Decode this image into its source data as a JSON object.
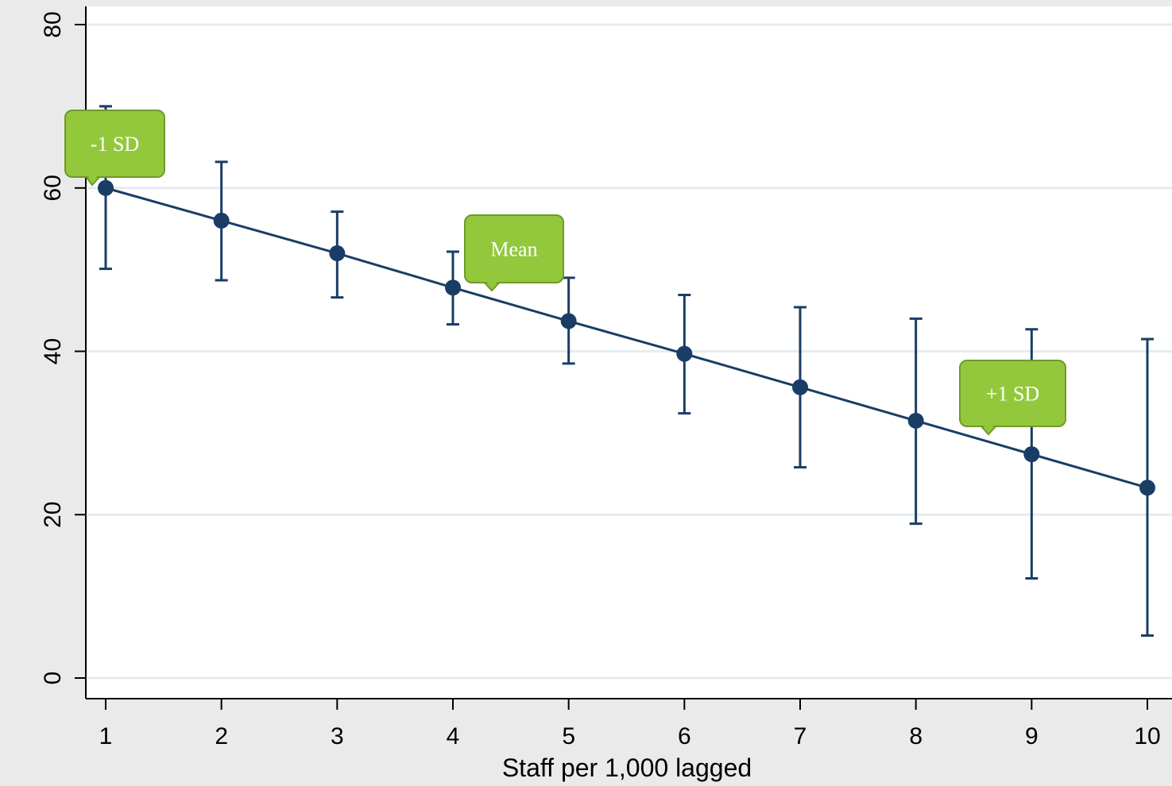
{
  "chart_data": {
    "type": "line",
    "title": "",
    "xlabel": "Staff per 1,000 lagged",
    "ylabel": "",
    "x": [
      1,
      2,
      3,
      4,
      5,
      6,
      7,
      8,
      9,
      10
    ],
    "series": [
      {
        "values": [
          60,
          56,
          52,
          47.8,
          43.7,
          39.7,
          35.6,
          31.5,
          27.4,
          23.3
        ],
        "ci_lower": [
          50.1,
          48.7,
          46.6,
          43.3,
          38.5,
          32.4,
          25.8,
          18.9,
          12.2,
          5.2
        ],
        "ci_upper": [
          70,
          63.2,
          57.1,
          52.2,
          49,
          46.9,
          45.4,
          44,
          42.7,
          41.5
        ]
      }
    ],
    "xticks": [
      "1",
      "2",
      "3",
      "4",
      "5",
      "6",
      "7",
      "8",
      "9",
      "10"
    ],
    "yticks": [
      "0",
      "20",
      "40",
      "60",
      "80"
    ],
    "xlim": [
      1,
      10
    ],
    "ylim": [
      0,
      80
    ],
    "grid": "horizontal",
    "annotations": [
      {
        "text": "-1 SD",
        "x": 1
      },
      {
        "text": "Mean",
        "x": 4.35
      },
      {
        "text": "+1 SD",
        "x": 8.65
      }
    ],
    "colors": {
      "line": "#1a3d66",
      "callout_fill": "#93c83c",
      "callout_border": "#6f9a2a",
      "callout_text": "#ffffff",
      "plot_bg": "#ffffff",
      "outer_bg": "#eaeaea",
      "grid": "#e4ecef"
    }
  }
}
